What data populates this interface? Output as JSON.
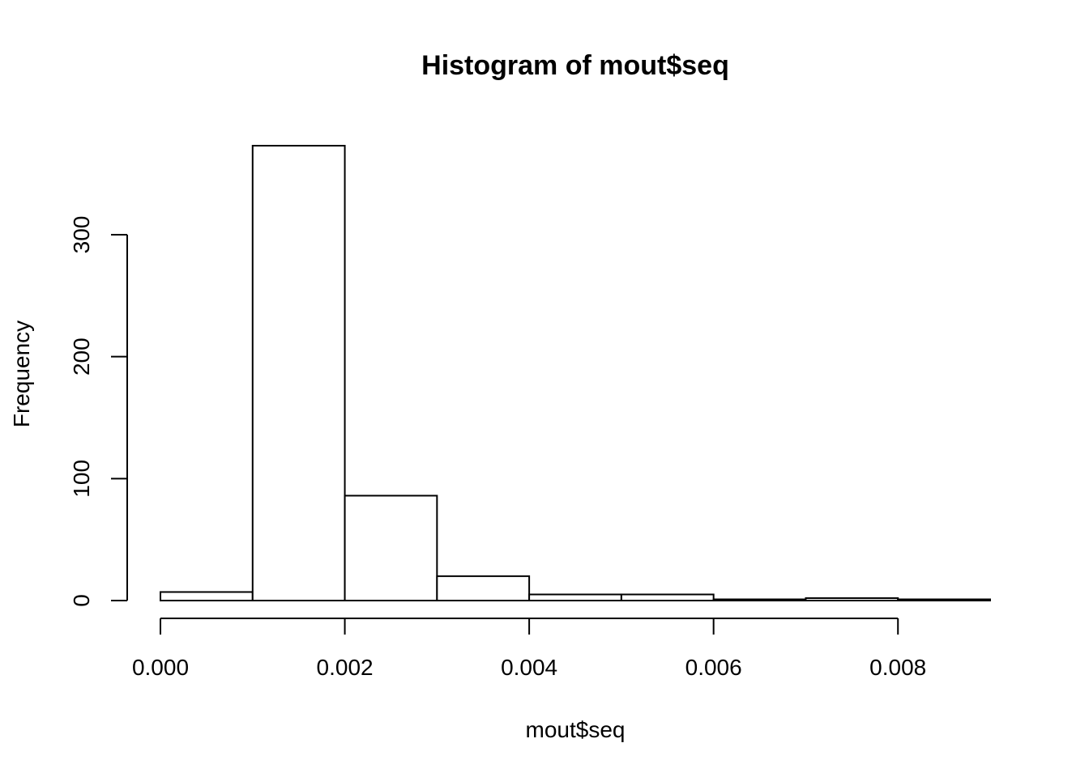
{
  "chart_data": {
    "type": "bar",
    "title": "Histogram of mout$seq",
    "xlabel": "mout$seq",
    "ylabel": "Frequency",
    "bins": [
      {
        "start": 0.0,
        "end": 0.001,
        "count": 7
      },
      {
        "start": 0.001,
        "end": 0.002,
        "count": 373
      },
      {
        "start": 0.002,
        "end": 0.003,
        "count": 86
      },
      {
        "start": 0.003,
        "end": 0.004,
        "count": 20
      },
      {
        "start": 0.004,
        "end": 0.005,
        "count": 5
      },
      {
        "start": 0.005,
        "end": 0.006,
        "count": 5
      },
      {
        "start": 0.006,
        "end": 0.007,
        "count": 1
      },
      {
        "start": 0.007,
        "end": 0.008,
        "count": 2
      },
      {
        "start": 0.008,
        "end": 0.009,
        "count": 1
      }
    ],
    "xlim": [
      0,
      0.009
    ],
    "ylim": [
      0,
      373
    ],
    "x_ticks": [
      {
        "value": 0.0,
        "label": "0.000"
      },
      {
        "value": 0.002,
        "label": "0.002"
      },
      {
        "value": 0.004,
        "label": "0.004"
      },
      {
        "value": 0.006,
        "label": "0.006"
      },
      {
        "value": 0.008,
        "label": "0.008"
      }
    ],
    "y_ticks": [
      {
        "value": 0,
        "label": "0"
      },
      {
        "value": 100,
        "label": "100"
      },
      {
        "value": 200,
        "label": "200"
      },
      {
        "value": 300,
        "label": "300"
      }
    ],
    "grid": false
  }
}
